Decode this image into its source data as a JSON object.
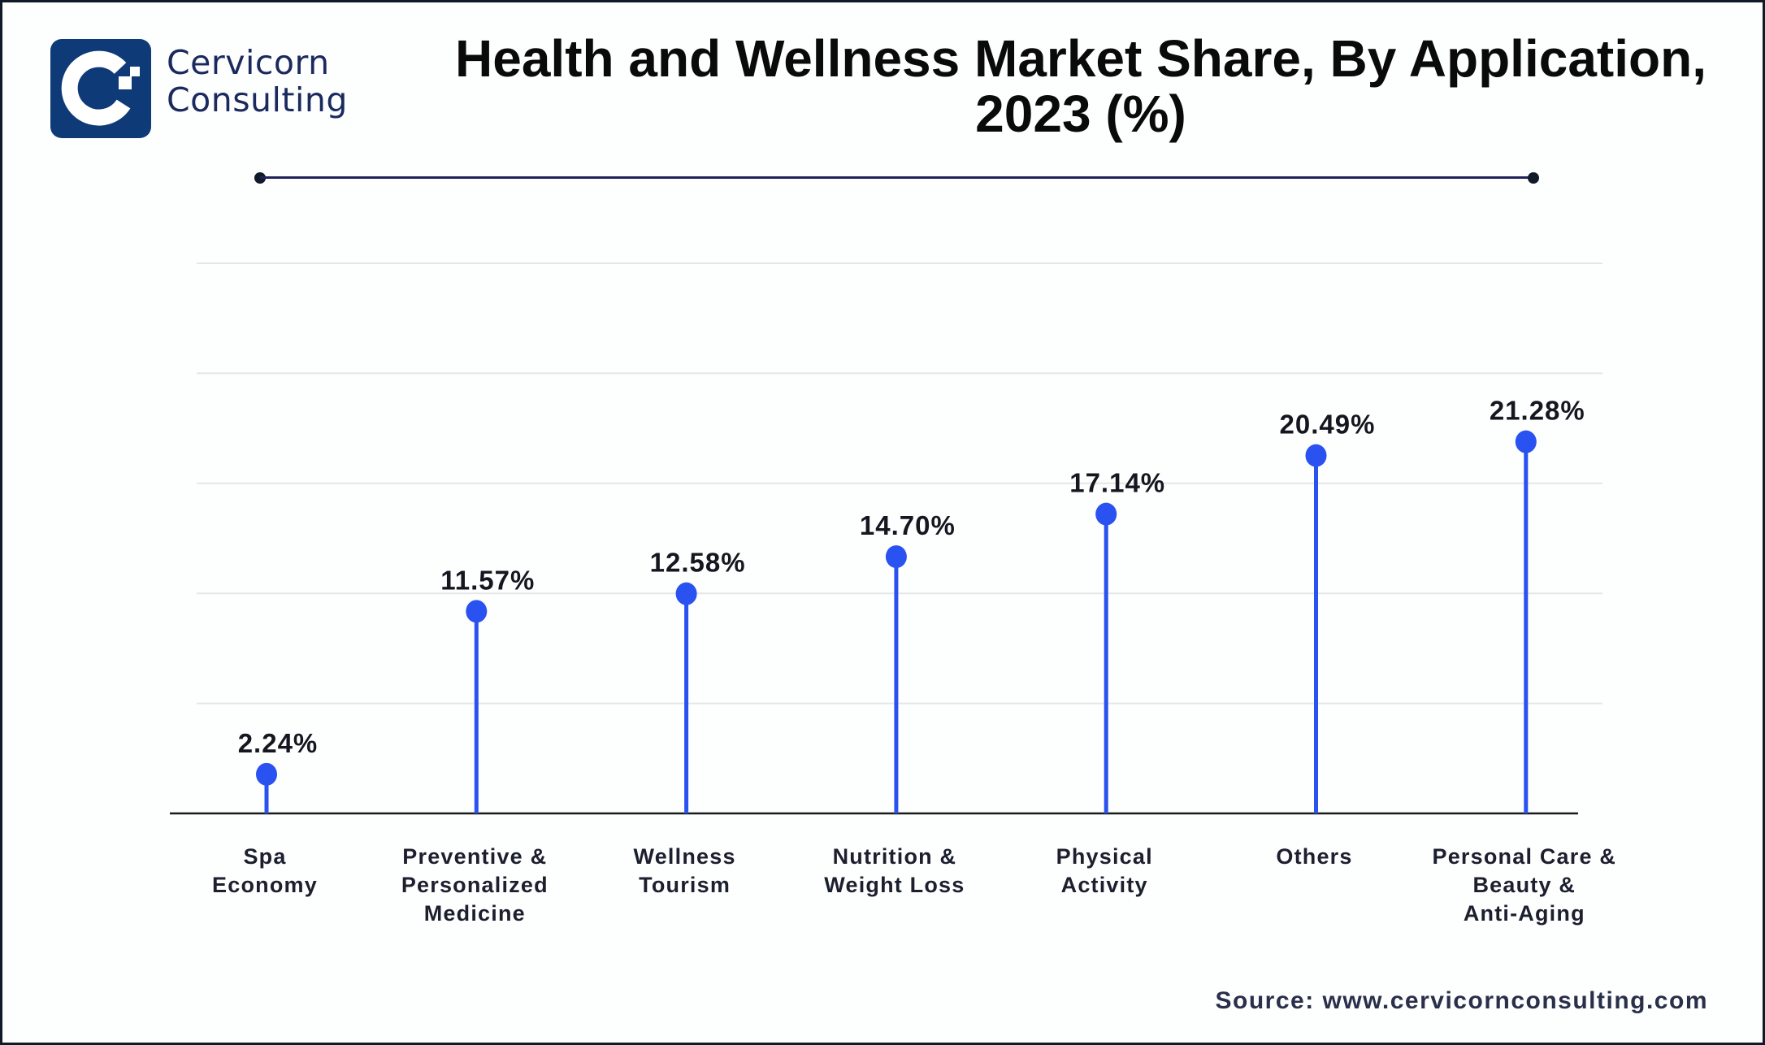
{
  "brand": {
    "line1": "Cervicorn",
    "line2": "Consulting",
    "logo_icon": "cervicorn-c-logo-icon",
    "color": "#0f3a78"
  },
  "title": {
    "line1": "Health and Wellness Market Share, By Application,",
    "line2": "2023 (%)"
  },
  "source": "Source: www.cervicornconsulting.com",
  "colors": {
    "accent": "#2952f0",
    "separator": "#1f2257",
    "text": "#14171f",
    "gridline": "#e6e6e6",
    "axis": "#1a1a1a"
  },
  "chart_data": {
    "type": "lollipop",
    "title": "Health and Wellness Market Share, By Application, 2023 (%)",
    "xlabel": "",
    "ylabel": "",
    "unit": "%",
    "ylim": [
      0,
      31.5
    ],
    "grid": true,
    "gridline_count": 5,
    "legend": "none",
    "categories": [
      [
        "Spa",
        "Economy"
      ],
      [
        "Preventive &",
        "Personalized",
        "Medicine"
      ],
      [
        "Wellness",
        "Tourism"
      ],
      [
        "Nutrition &",
        "Weight Loss"
      ],
      [
        "Physical",
        "Activity"
      ],
      [
        "Others"
      ],
      [
        "Personal Care &",
        "Beauty &",
        "Anti-Aging"
      ]
    ],
    "values": [
      2.24,
      11.57,
      12.58,
      14.7,
      17.14,
      20.49,
      21.28
    ],
    "labels": [
      "2.24%",
      "11.57%",
      "12.58%",
      "14.70%",
      "17.14%",
      "20.49%",
      "21.28%"
    ]
  }
}
